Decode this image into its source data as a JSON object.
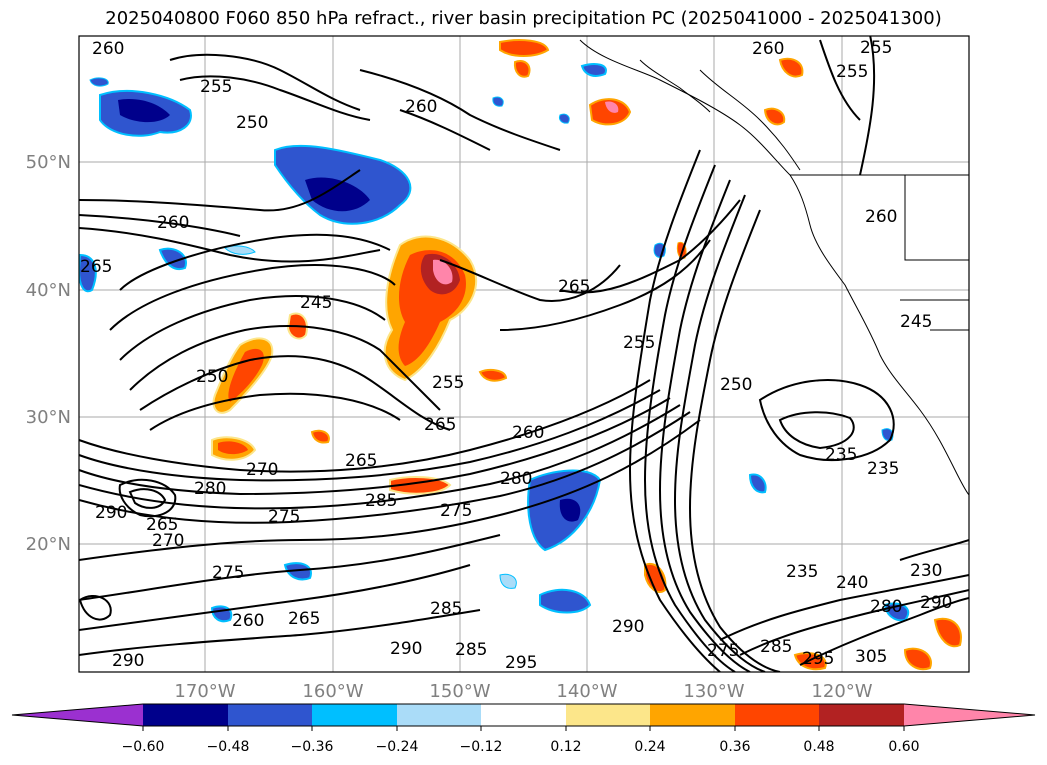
{
  "title": "2025040800 F060 850 hPa refract., river basin precipitation PC (2025041000 - 2025041300)",
  "latitude_labels": [
    "50°N",
    "40°N",
    "30°N",
    "20°N"
  ],
  "longitude_labels": [
    "170°W",
    "160°W",
    "150°W",
    "140°W",
    "130°W",
    "120°W"
  ],
  "colorbar": {
    "ticks": [
      "−0.60",
      "−0.48",
      "−0.36",
      "−0.24",
      "−0.12",
      "0.12",
      "0.24",
      "0.36",
      "0.48",
      "0.60"
    ],
    "colors": [
      "#9b30d0",
      "#00008b",
      "#2f55cf",
      "#00bfff",
      "#aadcf8",
      "#ffffff",
      "#fce68a",
      "#ffa500",
      "#ff4500",
      "#b22222",
      "#ff85aa"
    ]
  },
  "contour_labels": [
    "260",
    "255",
    "250",
    "260",
    "265",
    "255",
    "260",
    "245",
    "265",
    "250",
    "255",
    "265",
    "260",
    "265",
    "270",
    "280",
    "285",
    "275",
    "290",
    "265",
    "270",
    "275",
    "260",
    "265",
    "280",
    "275",
    "285",
    "290",
    "295",
    "290",
    "285",
    "275",
    "285",
    "280",
    "290",
    "295",
    "305",
    "235",
    "235",
    "230",
    "240",
    "250",
    "255",
    "245",
    "255",
    "260",
    "235",
    "290",
    "260"
  ]
}
